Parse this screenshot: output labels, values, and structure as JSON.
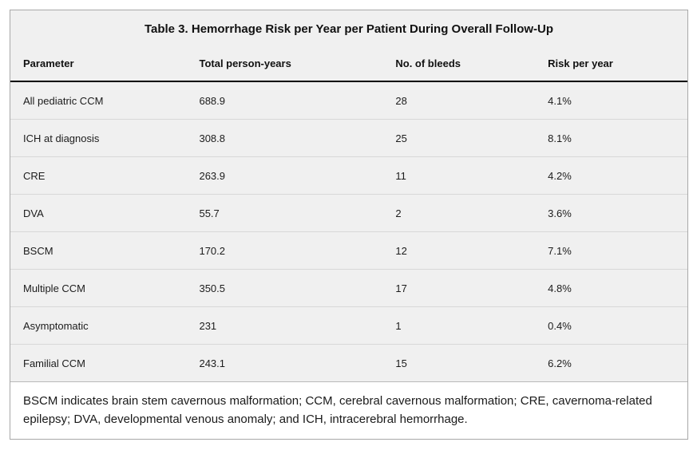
{
  "table": {
    "title": "Table 3. Hemorrhage Risk per Year per Patient During Overall Follow-Up",
    "columns": [
      "Parameter",
      "Total person-years",
      "No. of bleeds",
      "Risk per year"
    ],
    "rows": [
      {
        "parameter": "All pediatric CCM",
        "person_years": "688.9",
        "bleeds": "28",
        "risk": "4.1%"
      },
      {
        "parameter": "ICH at diagnosis",
        "person_years": "308.8",
        "bleeds": "25",
        "risk": "8.1%"
      },
      {
        "parameter": "CRE",
        "person_years": "263.9",
        "bleeds": "11",
        "risk": "4.2%"
      },
      {
        "parameter": "DVA",
        "person_years": "55.7",
        "bleeds": "2",
        "risk": "3.6%"
      },
      {
        "parameter": "BSCM",
        "person_years": "170.2",
        "bleeds": "12",
        "risk": "7.1%"
      },
      {
        "parameter": "Multiple CCM",
        "person_years": "350.5",
        "bleeds": "17",
        "risk": "4.8%"
      },
      {
        "parameter": "Asymptomatic",
        "person_years": "231",
        "bleeds": "1",
        "risk": "0.4%"
      },
      {
        "parameter": "Familial CCM",
        "person_years": "243.1",
        "bleeds": "15",
        "risk": "6.2%"
      }
    ],
    "footnote": "BSCM indicates brain stem cavernous malformation; CCM, cerebral cavernous malformation; CRE, cavernoma-related epilepsy; DVA, developmental venous anomaly; and ICH, intracerebral hemorrhage."
  },
  "colors": {
    "table_background": "#f0f0f0",
    "footnote_background": "#ffffff",
    "outer_border": "#a8a8a8",
    "row_divider": "#d8d8d8",
    "header_rule": "#000000",
    "text": "#1a1a1a"
  }
}
